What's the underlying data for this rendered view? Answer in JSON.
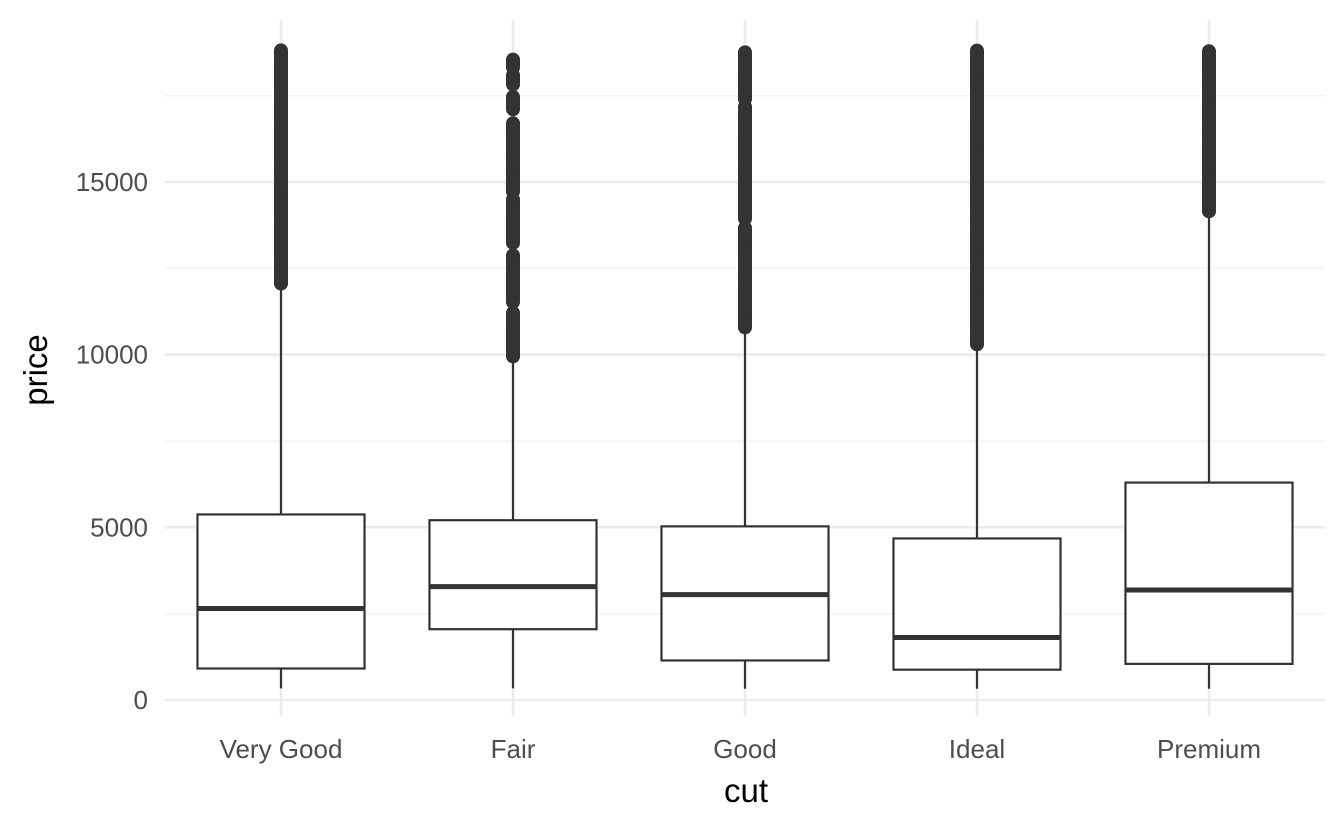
{
  "chart_data": {
    "type": "boxplot",
    "title": "",
    "xlabel": "cut",
    "ylabel": "price",
    "ylim": [
      -600,
      19000
    ],
    "y_ticks": [
      0,
      5000,
      10000,
      15000
    ],
    "y_tick_labels": [
      "0",
      "5000",
      "10000",
      "15000"
    ],
    "y_minor_ticks": [
      2500,
      7500,
      12500,
      17500
    ],
    "grid": true,
    "legend": "none",
    "categories": [
      "Very Good",
      "Fair",
      "Good",
      "Ideal",
      "Premium"
    ],
    "boxes": [
      {
        "category": "Very Good",
        "min": 336,
        "q1": 912,
        "median": 2648,
        "q3": 5373,
        "whisker_high": 12060,
        "outlier_range": [
          12060,
          18818
        ],
        "outlier_gaps": []
      },
      {
        "category": "Fair",
        "min": 337,
        "q1": 2050,
        "median": 3282,
        "q3": 5206,
        "whisker_high": 9950,
        "outlier_range": [
          9950,
          18574
        ],
        "outlier_gaps": [
          [
            11250,
            11500
          ],
          [
            12900,
            13200
          ],
          [
            14500,
            14700
          ],
          [
            16700,
            17100
          ],
          [
            17500,
            17800
          ],
          [
            18100,
            18300
          ]
        ]
      },
      {
        "category": "Good",
        "min": 327,
        "q1": 1145,
        "median": 3050,
        "q3": 5028,
        "whisker_high": 10790,
        "outlier_range": [
          10790,
          18788
        ],
        "outlier_gaps": [
          [
            13700,
            13900
          ],
          [
            17200,
            17400
          ]
        ]
      },
      {
        "category": "Ideal",
        "min": 326,
        "q1": 878,
        "median": 1810,
        "q3": 4678,
        "whisker_high": 10300,
        "outlier_range": [
          10300,
          18806
        ],
        "outlier_gaps": []
      },
      {
        "category": "Premium",
        "min": 326,
        "q1": 1046,
        "median": 3185,
        "q3": 6296,
        "whisker_high": 14150,
        "outlier_range": [
          14150,
          18823
        ],
        "outlier_gaps": []
      }
    ]
  }
}
